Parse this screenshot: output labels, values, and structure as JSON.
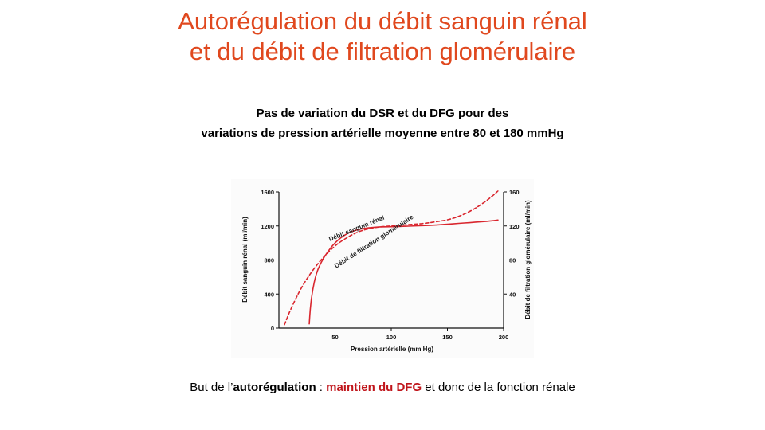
{
  "slide": {
    "title_line1": "Autorégulation du débit sanguin rénal",
    "title_line2": "et du débit de filtration glomérulaire",
    "subtitle_line1_a": "Pas de variation",
    "subtitle_line1_b": " du DSR et du DFG pour des",
    "subtitle_line2": "variations de pression artérielle moyenne entre 80 et 180 mmHg",
    "bottom_a": "But de l’",
    "bottom_b": "autorégulation",
    "bottom_c": " : ",
    "bottom_d": "maintien du DFG",
    "bottom_e": " et donc de la fonction rénale"
  },
  "colors": {
    "title": "#e0481e",
    "curve": "#d9262e",
    "emphasis": "#c0151b"
  },
  "chart_data": {
    "type": "line",
    "xlabel": "Pression artérielle (mm Hg)",
    "ylabel_left": "Débit sanguin rénal (ml/min)",
    "ylabel_right": "Débit de filtration glomérulaire (ml/min)",
    "xlim": [
      0,
      200
    ],
    "ylim_left": [
      0,
      1600
    ],
    "ylim_right": [
      0,
      160
    ],
    "x_ticks": [
      "50",
      "100",
      "150",
      "200"
    ],
    "y_ticks_left": [
      "0",
      "400",
      "800",
      "1200",
      "1600"
    ],
    "y_ticks_right": [
      "40",
      "80",
      "120",
      "160"
    ],
    "series": [
      {
        "name": "Débit sanguin rénal",
        "style": "dashed",
        "axis": "left",
        "x": [
          5,
          10,
          20,
          30,
          40,
          50,
          60,
          70,
          80,
          90,
          100,
          110,
          120,
          130,
          140,
          150,
          160,
          170,
          180,
          190,
          195
        ],
        "y": [
          40,
          210,
          480,
          680,
          840,
          970,
          1060,
          1130,
          1170,
          1190,
          1200,
          1210,
          1220,
          1230,
          1250,
          1270,
          1310,
          1370,
          1450,
          1550,
          1610
        ]
      },
      {
        "name": "Débit de filtration glomérulaire",
        "style": "solid",
        "axis": "right",
        "x": [
          27,
          28,
          30,
          33,
          37,
          42,
          50,
          60,
          70,
          80,
          90,
          100,
          110,
          120,
          130,
          140,
          150,
          160,
          170,
          180,
          190,
          195
        ],
        "y": [
          5,
          25,
          45,
          63,
          76,
          87,
          101,
          111,
          116,
          118,
          119,
          119,
          119.5,
          120,
          120.5,
          121,
          122,
          123,
          124,
          125,
          126,
          127
        ]
      }
    ]
  }
}
